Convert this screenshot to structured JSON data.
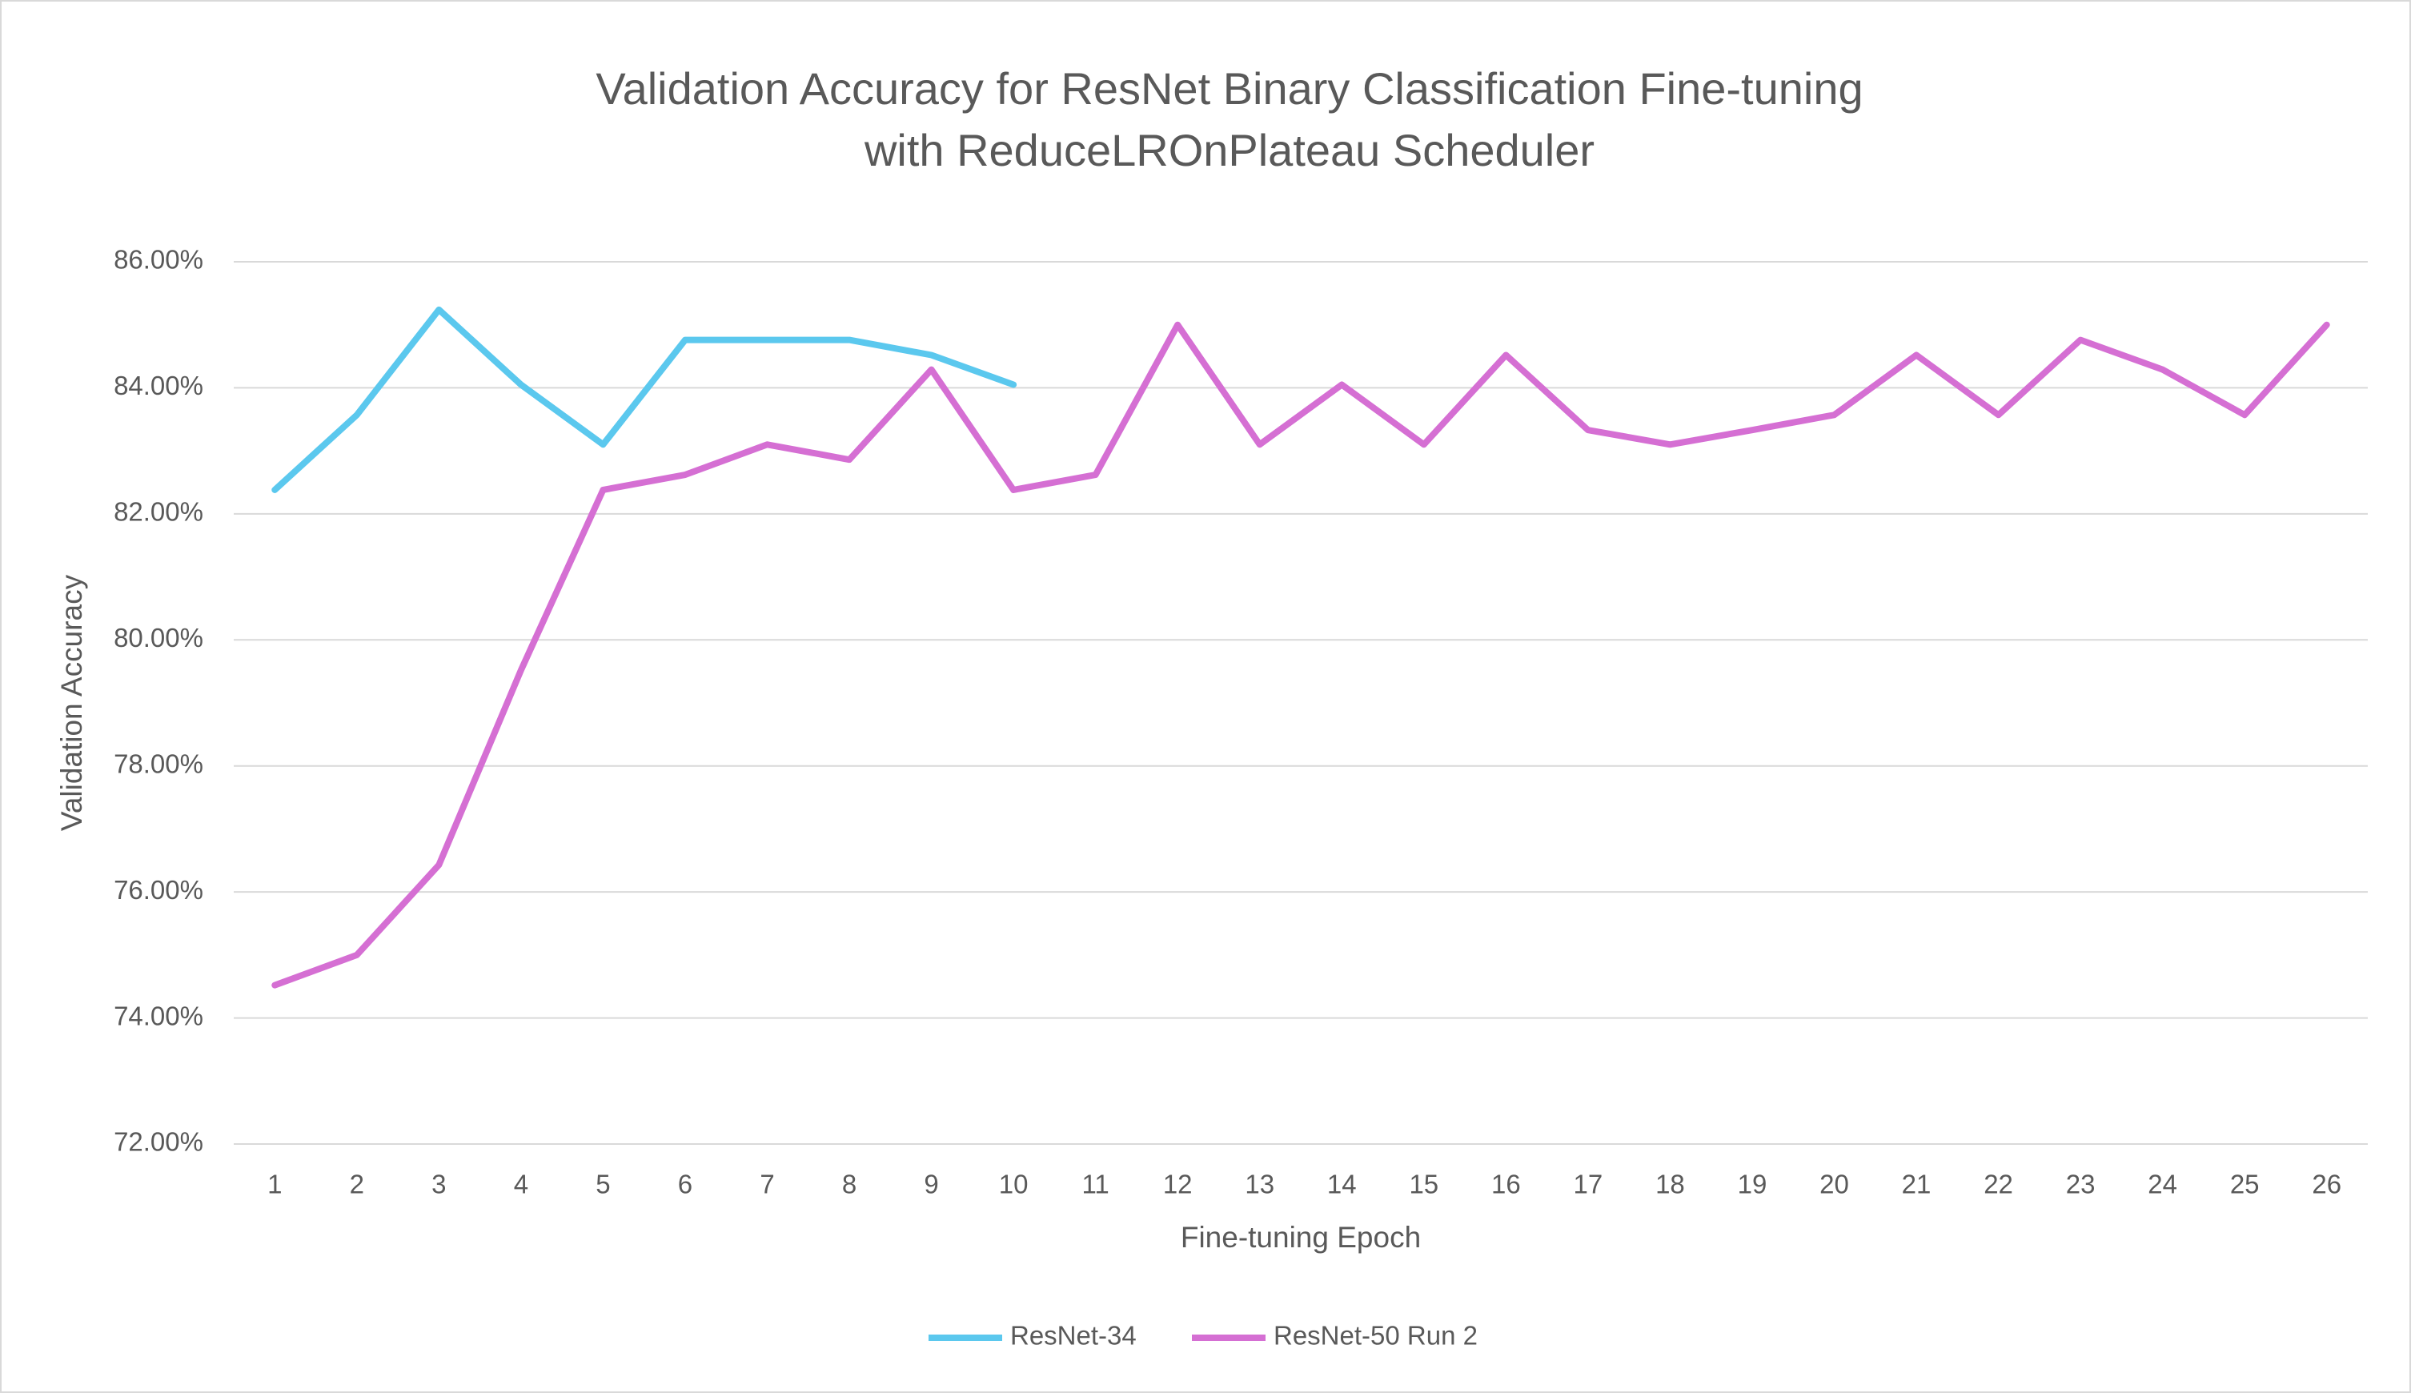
{
  "chart_data": {
    "type": "line",
    "title": [
      "Validation Accuracy for ResNet Binary Classification Fine-tuning",
      "with ReduceLROnPlateau Scheduler"
    ],
    "x_label": "Fine-tuning Epoch",
    "y_label": "Validation Accuracy",
    "categories": [
      "1",
      "2",
      "3",
      "4",
      "5",
      "6",
      "7",
      "8",
      "9",
      "10",
      "11",
      "12",
      "13",
      "14",
      "15",
      "16",
      "17",
      "18",
      "19",
      "20",
      "21",
      "22",
      "23",
      "24",
      "25",
      "26"
    ],
    "series": [
      {
        "name": "ResNet-34",
        "color": "#5bc8ee",
        "values": [
          82.38,
          83.57,
          85.24,
          84.05,
          83.1,
          84.76,
          84.76,
          84.76,
          84.52,
          84.05,
          null,
          null,
          null,
          null,
          null,
          null,
          null,
          null,
          null,
          null,
          null,
          null,
          null,
          null,
          null,
          null
        ]
      },
      {
        "name": "ResNet-50 Run 2",
        "color": "#d56fd3",
        "values": [
          74.52,
          75.0,
          76.43,
          79.52,
          82.38,
          82.62,
          83.1,
          82.86,
          84.29,
          82.38,
          82.62,
          85.0,
          83.1,
          84.05,
          83.1,
          84.52,
          83.33,
          83.1,
          83.33,
          83.57,
          84.52,
          83.57,
          84.76,
          84.29,
          83.57,
          85.0
        ]
      }
    ],
    "ylim": [
      72,
      86
    ],
    "yticks": [
      {
        "value": 72,
        "label": "72.00%"
      },
      {
        "value": 74,
        "label": "74.00%"
      },
      {
        "value": 76,
        "label": "76.00%"
      },
      {
        "value": 78,
        "label": "78.00%"
      },
      {
        "value": 80,
        "label": "80.00%"
      },
      {
        "value": 82,
        "label": "82.00%"
      },
      {
        "value": 84,
        "label": "84.00%"
      },
      {
        "value": 86,
        "label": "86.00%"
      }
    ],
    "grid": true,
    "legend": "bottom"
  }
}
